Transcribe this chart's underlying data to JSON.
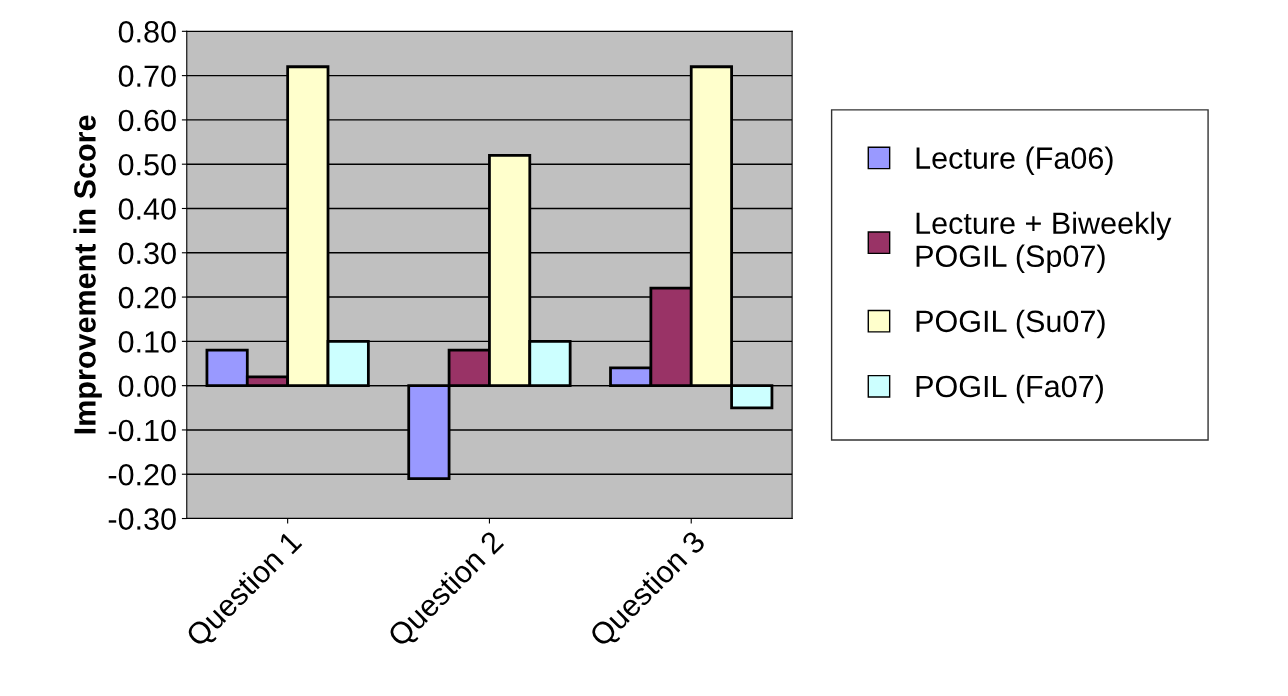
{
  "chart_data": {
    "type": "bar",
    "ylabel": "Improvement in Score",
    "categories": [
      "Question 1",
      "Question 2",
      "Question 3"
    ],
    "series": [
      {
        "name": "Lecture (Fa06)",
        "color": "#9999ff",
        "values": [
          0.08,
          -0.21,
          0.04
        ]
      },
      {
        "name": "Lecture + Biweekly\nPOGIL (Sp07)",
        "color": "#993366",
        "values": [
          0.02,
          0.08,
          0.22
        ]
      },
      {
        "name": "POGIL (Su07)",
        "color": "#ffffcc",
        "values": [
          0.72,
          0.52,
          0.72
        ]
      },
      {
        "name": "POGIL (Fa07)",
        "color": "#ccffff",
        "values": [
          0.1,
          0.1,
          -0.05
        ]
      }
    ],
    "ylim": [
      -0.3,
      0.8
    ],
    "yticks": [
      {
        "value": -0.3,
        "label": "-0.30"
      },
      {
        "value": -0.2,
        "label": "-0.20"
      },
      {
        "value": -0.1,
        "label": "-0.10"
      },
      {
        "value": 0,
        "label": "0.00"
      },
      {
        "value": 0.1,
        "label": "0.10"
      },
      {
        "value": 0.2,
        "label": "0.20"
      },
      {
        "value": 0.3,
        "label": "0.30"
      },
      {
        "value": 0.4,
        "label": "0.40"
      },
      {
        "value": 0.5,
        "label": "0.50"
      },
      {
        "value": 0.6,
        "label": "0.60"
      },
      {
        "value": 0.7,
        "label": "0.70"
      },
      {
        "value": 0.8,
        "label": "0.80"
      }
    ],
    "grid": "y",
    "legend": "right"
  }
}
